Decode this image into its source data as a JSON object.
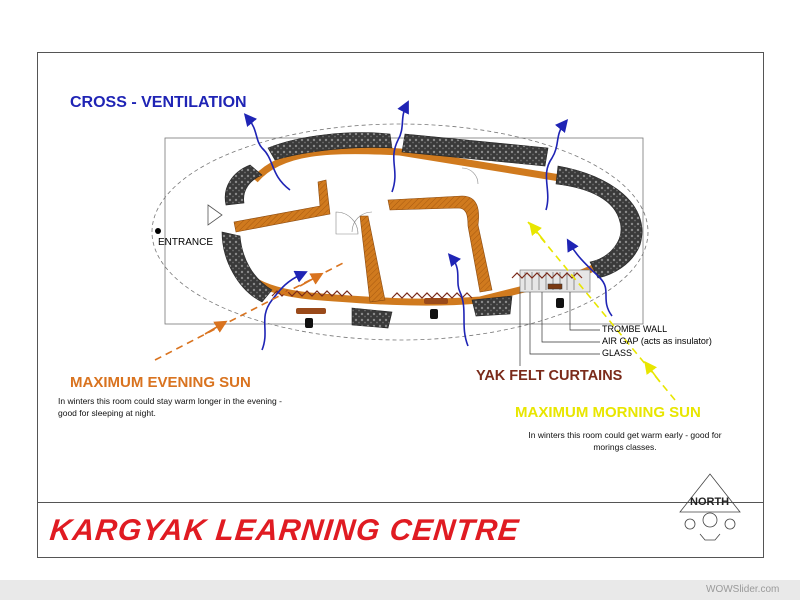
{
  "labels": {
    "cross_ventilation": "CROSS - VENTILATION",
    "entrance": "ENTRANCE",
    "evening_heading": "MAXIMUM EVENING SUN",
    "evening_desc": "In winters this room could stay warm longer in the evening - good for sleeping at night.",
    "morning_heading": "MAXIMUM MORNING SUN",
    "morning_desc": "In winters this room could get warm early - good for morings classes.",
    "yak_felt": "YAK FELT CURTAINS",
    "trombe_wall": "TROMBE WALL",
    "air_gap": "AIR    GAP (acts as insulator)",
    "glass": "GLASS",
    "title": "KARGYAK LEARNING CENTRE",
    "north": "NORTH",
    "watermark": "WOWSlider.com"
  },
  "colors": {
    "ventilation_arrow": "#1f24b5",
    "evening_sun": "#d9731f",
    "morning_sun": "#e8e600",
    "wall_stone": "#3c3c3c",
    "wall_mud": "#d07a1e",
    "curtain": "#7a2a1a",
    "title": "#e01b22"
  }
}
